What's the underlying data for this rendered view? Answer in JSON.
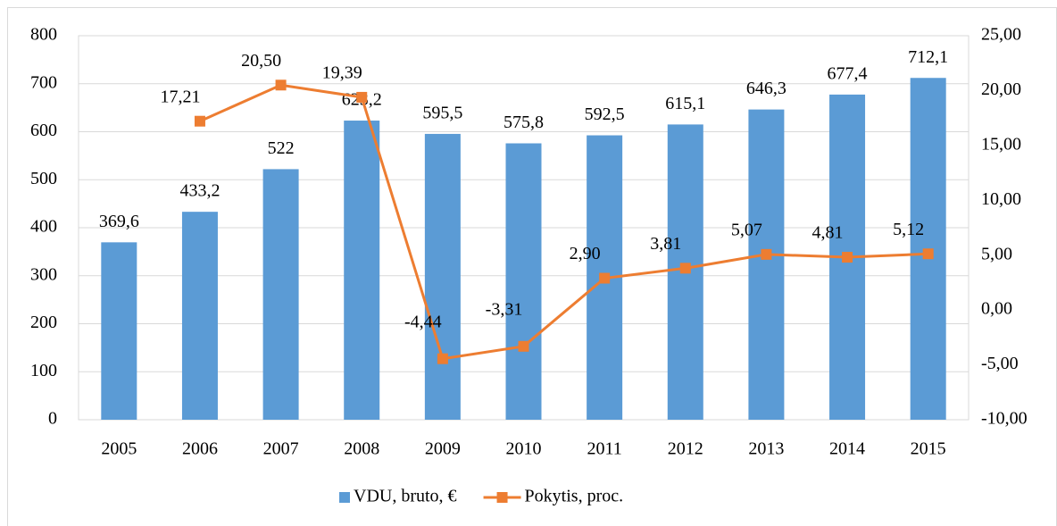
{
  "chart_data": {
    "type": "bar",
    "categories": [
      "2005",
      "2006",
      "2007",
      "2008",
      "2009",
      "2010",
      "2011",
      "2012",
      "2013",
      "2014",
      "2015"
    ],
    "series": [
      {
        "name": "VDU, bruto, €",
        "type": "bar",
        "axis": "y",
        "color": "#5b9bd5",
        "values": [
          369.6,
          433.2,
          522,
          623.2,
          595.5,
          575.8,
          592.5,
          615.1,
          646.3,
          677.4,
          712.1
        ],
        "value_labels": [
          "369,6",
          "433,2",
          "522",
          "623,2",
          "595,5",
          "575,8",
          "592,5",
          "615,1",
          "646,3",
          "677,4",
          "712,1"
        ]
      },
      {
        "name": "Pokytis, proc.",
        "type": "line",
        "axis": "y2",
        "color": "#ed7d31",
        "values": [
          null,
          17.21,
          20.5,
          19.39,
          -4.44,
          -3.31,
          2.9,
          3.81,
          5.07,
          4.81,
          5.12
        ],
        "value_labels": [
          null,
          "17,21",
          "20,50",
          "19,39",
          "-4,44",
          "-3,31",
          "2,90",
          "3,81",
          "5,07",
          "4,81",
          "5,12"
        ]
      }
    ],
    "ylim": [
      0,
      800
    ],
    "yticks": [
      0,
      100,
      200,
      300,
      400,
      500,
      600,
      700,
      800
    ],
    "y2lim": [
      -10,
      25
    ],
    "y2ticks": [
      {
        "value": -10,
        "label": "-10,00"
      },
      {
        "value": -5,
        "label": "-5,00"
      },
      {
        "value": 0,
        "label": "0,00"
      },
      {
        "value": 5,
        "label": "5,00"
      },
      {
        "value": 10,
        "label": "10,00"
      },
      {
        "value": 15,
        "label": "15,00"
      },
      {
        "value": 20,
        "label": "20,00"
      },
      {
        "value": 25,
        "label": "25,00"
      }
    ],
    "grid": true,
    "legend": "bottom"
  }
}
